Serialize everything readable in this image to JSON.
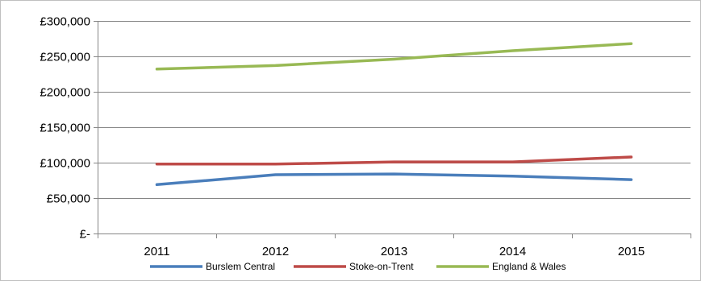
{
  "chart_data": {
    "type": "line",
    "title": "",
    "xlabel": "",
    "ylabel": "",
    "categories": [
      "2011",
      "2012",
      "2013",
      "2014",
      "2015"
    ],
    "ylim": [
      0,
      300000
    ],
    "yticks": [
      0,
      50000,
      100000,
      150000,
      200000,
      250000,
      300000
    ],
    "ytick_labels": [
      "£-",
      "£50,000",
      "£100,000",
      "£150,000",
      "£200,000",
      "£250,000",
      "£300,000"
    ],
    "grid": true,
    "legend": "bottom",
    "series": [
      {
        "name": "Burslem Central",
        "color": "#4a7ebb",
        "values": [
          69000,
          83000,
          84000,
          81000,
          76000
        ]
      },
      {
        "name": "Stoke-on-Trent",
        "color": "#be4b48",
        "values": [
          98000,
          98000,
          101000,
          101000,
          108000
        ]
      },
      {
        "name": "England & Wales",
        "color": "#98b954",
        "values": [
          232000,
          237000,
          246000,
          258000,
          268000
        ]
      }
    ]
  }
}
